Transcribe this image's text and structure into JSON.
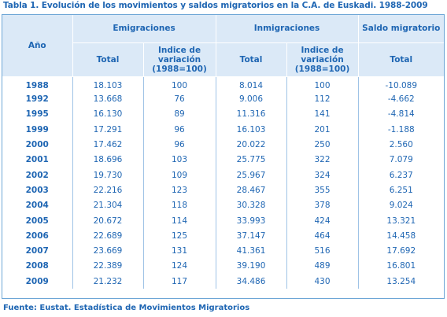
{
  "title": "Tabla 1. Evolución de los movimientos y saldos migratorios en la C.A. de Euskadi. 1988-2009",
  "headers": {
    "year": "Año",
    "emigraciones": "Emigraciones",
    "inmigraciones": "Inmigraciones",
    "saldo": "Saldo migratorio",
    "total": "Total",
    "indice": "Indice de variación (1988=100)"
  },
  "rows": [
    {
      "year": "1988",
      "emi_total": "18.103",
      "emi_idx": "100",
      "inm_total": "8.014",
      "inm_idx": "100",
      "saldo": "-10.089"
    },
    {
      "year": "1992",
      "emi_total": "13.668",
      "emi_idx": "76",
      "inm_total": "9.006",
      "inm_idx": "112",
      "saldo": "-4.662"
    },
    {
      "year": "1995",
      "emi_total": "16.130",
      "emi_idx": "89",
      "inm_total": "11.316",
      "inm_idx": "141",
      "saldo": "-4.814"
    },
    {
      "year": "1999",
      "emi_total": "17.291",
      "emi_idx": "96",
      "inm_total": "16.103",
      "inm_idx": "201",
      "saldo": "-1.188"
    },
    {
      "year": "2000",
      "emi_total": "17.462",
      "emi_idx": "96",
      "inm_total": "20.022",
      "inm_idx": "250",
      "saldo": "2.560"
    },
    {
      "year": "2001",
      "emi_total": "18.696",
      "emi_idx": "103",
      "inm_total": "25.775",
      "inm_idx": "322",
      "saldo": "7.079"
    },
    {
      "year": "2002",
      "emi_total": "19.730",
      "emi_idx": "109",
      "inm_total": "25.967",
      "inm_idx": "324",
      "saldo": "6.237"
    },
    {
      "year": "2003",
      "emi_total": "22.216",
      "emi_idx": "123",
      "inm_total": "28.467",
      "inm_idx": "355",
      "saldo": "6.251"
    },
    {
      "year": "2004",
      "emi_total": "21.304",
      "emi_idx": "118",
      "inm_total": "30.328",
      "inm_idx": "378",
      "saldo": "9.024"
    },
    {
      "year": "2005",
      "emi_total": "20.672",
      "emi_idx": "114",
      "inm_total": "33.993",
      "inm_idx": "424",
      "saldo": "13.321"
    },
    {
      "year": "2006",
      "emi_total": "22.689",
      "emi_idx": "125",
      "inm_total": "37.147",
      "inm_idx": "464",
      "saldo": "14.458"
    },
    {
      "year": "2007",
      "emi_total": "23.669",
      "emi_idx": "131",
      "inm_total": "41.361",
      "inm_idx": "516",
      "saldo": "17.692"
    },
    {
      "year": "2008",
      "emi_total": "22.389",
      "emi_idx": "124",
      "inm_total": "39.190",
      "inm_idx": "489",
      "saldo": "16.801"
    },
    {
      "year": "2009",
      "emi_total": "21.232",
      "emi_idx": "117",
      "inm_total": "34.486",
      "inm_idx": "430",
      "saldo": "13.254"
    }
  ],
  "footer": "Fuente: Eustat. Estadística de Movimientos Migratorios"
}
